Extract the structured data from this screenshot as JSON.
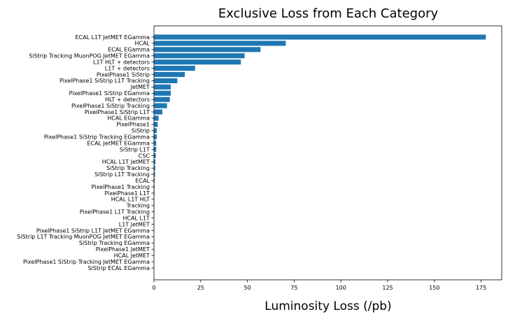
{
  "chart_data": {
    "type": "bar",
    "orientation": "horizontal",
    "title": "Exclusive Loss from Each Category",
    "xlabel": "Luminosity Loss (/pb)",
    "ylabel": "",
    "xlim": [
      0,
      186
    ],
    "xticks": [
      0,
      25,
      50,
      75,
      100,
      125,
      150,
      175
    ],
    "grid": false,
    "bar_color": "#1f77b4",
    "categories": [
      "ECAL L1T JetMET EGamma",
      "HCAL",
      "ECAL EGamma",
      "SiStrip Tracking MuonPOG JetMET EGamma",
      "L1T HLT + detectors",
      "L1T + detectors",
      "PixelPhase1 SiStrip",
      "PixelPhase1 SiStrip L1T Tracking",
      "JetMET",
      "PixelPhase1 SiStrip EGamma",
      "HLT + detectors",
      "PixelPhase1 SiStrip Tracking",
      "PixelPhase1 SiStrip L1T",
      "HCAL EGamma",
      "PixelPhase1",
      "SiStrip",
      "PixelPhase1 SiStrip Tracking EGamma",
      "ECAL JetMET EGamma",
      "SiStrip L1T",
      "CSC",
      "HCAL L1T JetMET",
      "SiStrip Tracking",
      "SiStrip L1T Tracking",
      "ECAL",
      "PixelPhase1 Tracking",
      "PixelPhase1 L1T",
      "HCAL L1T HLT",
      "Tracking",
      "PixelPhase1 L1T Tracking",
      "HCAL L1T",
      "L1T JetMET",
      "PixelPhase1 SiStrip L1T JetMET EGamma",
      "SiStrip L1T Tracking MuonPOG JetMET EGamma",
      "SiStrip Tracking EGamma",
      "PixelPhase1 JetMET",
      "HCAL JetMET",
      "PixelPhase1 SiStrip Tracking JetMET EGamma",
      "SiStrip ECAL EGamma"
    ],
    "values": [
      177.5,
      70.5,
      57.0,
      48.5,
      46.5,
      22.0,
      16.5,
      12.5,
      9.0,
      9.0,
      8.5,
      7.0,
      4.5,
      2.5,
      2.0,
      1.5,
      1.5,
      1.2,
      1.2,
      1.0,
      0.8,
      0.7,
      0.6,
      0.4,
      0.3,
      0.3,
      0.2,
      0.2,
      0.2,
      0.15,
      0.15,
      0.1,
      0.1,
      0.1,
      0.1,
      0.05,
      0.05,
      0.05
    ]
  }
}
